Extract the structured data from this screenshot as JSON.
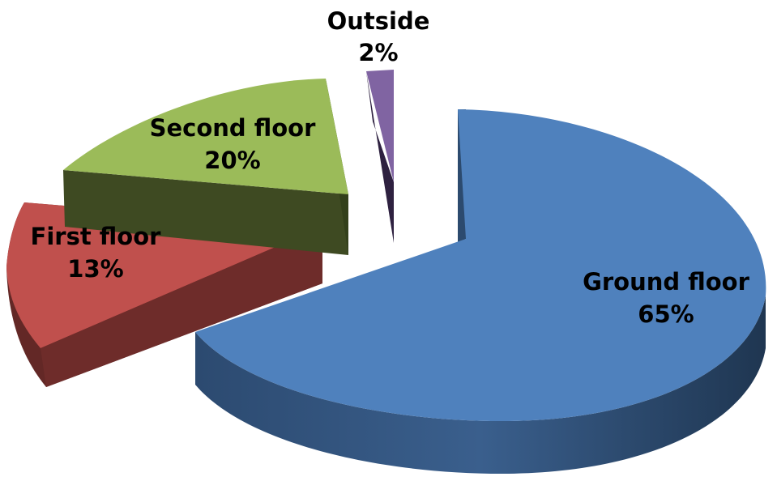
{
  "chart_data": {
    "type": "pie",
    "style": "3d-exploded",
    "title": "",
    "legend": "none",
    "slices": [
      {
        "name": "Ground floor",
        "value": 65,
        "label": "65%",
        "color": "#4f81bd"
      },
      {
        "name": "First floor",
        "value": 13,
        "label": "13%",
        "color": "#c0504d"
      },
      {
        "name": "Second floor",
        "value": 20,
        "label": "20%",
        "color": "#9bbb59"
      },
      {
        "name": "Outside",
        "value": 2,
        "label": "2%",
        "color": "#8064a2"
      }
    ]
  }
}
